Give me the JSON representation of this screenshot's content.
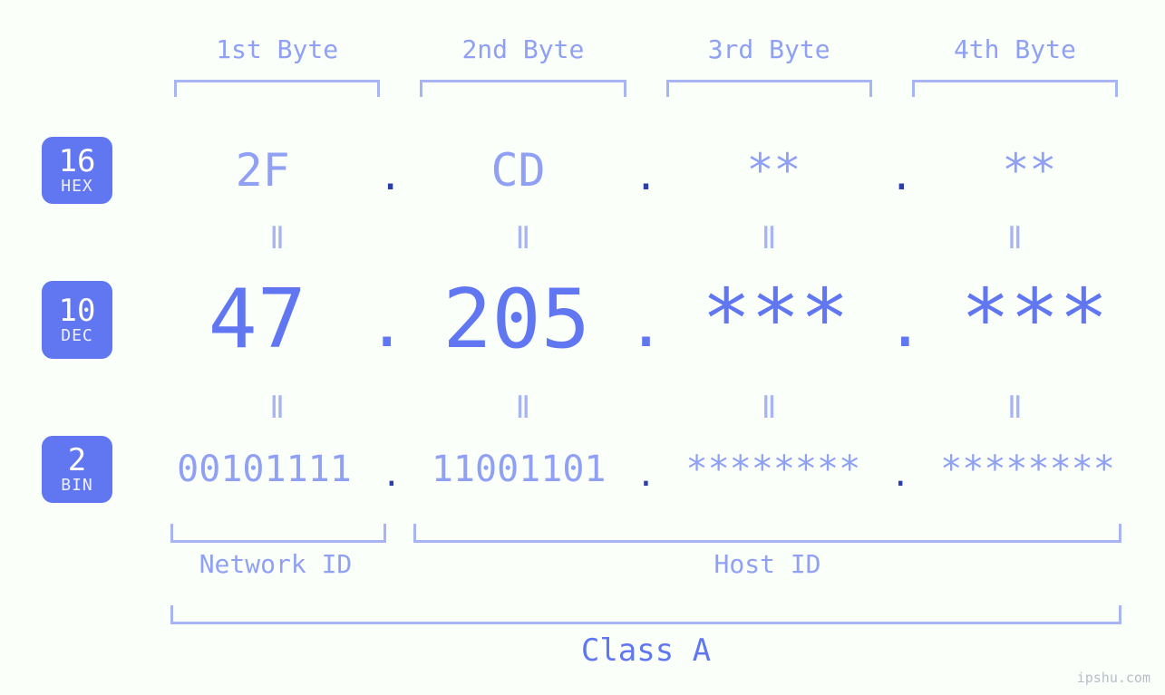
{
  "colors": {
    "accent": "#6177f2",
    "accent_light": "#8fa0f5",
    "accent_pale": "#a8b4f3",
    "background": "#fbfff9"
  },
  "badges": {
    "hex": {
      "num": "16",
      "label": "HEX"
    },
    "dec": {
      "num": "10",
      "label": "DEC"
    },
    "bin": {
      "num": "2",
      "label": "BIN"
    }
  },
  "byte_headers": [
    "1st Byte",
    "2nd Byte",
    "3rd Byte",
    "4th Byte"
  ],
  "separator": ".",
  "equals_glyph": "ǁ",
  "rows": {
    "hex": [
      "2F",
      "CD",
      "**",
      "**"
    ],
    "dec": [
      "47",
      "205",
      "***",
      "***"
    ],
    "bin": [
      "00101111",
      "11001101",
      "********",
      "********"
    ]
  },
  "groupings": {
    "network_id": {
      "label": "Network ID",
      "byte_start": 1,
      "byte_end": 1
    },
    "host_id": {
      "label": "Host ID",
      "byte_start": 2,
      "byte_end": 4
    },
    "class": {
      "label": "Class A",
      "byte_start": 1,
      "byte_end": 4
    }
  },
  "watermark": "ipshu.com",
  "typography": {
    "font_family": "monospace",
    "header_fontsize": 28,
    "hex_fontsize": 50,
    "dec_fontsize": 90,
    "bin_fontsize": 40,
    "equals_fontsize": 34,
    "group_label_fontsize": 28,
    "class_label_fontsize": 34
  }
}
